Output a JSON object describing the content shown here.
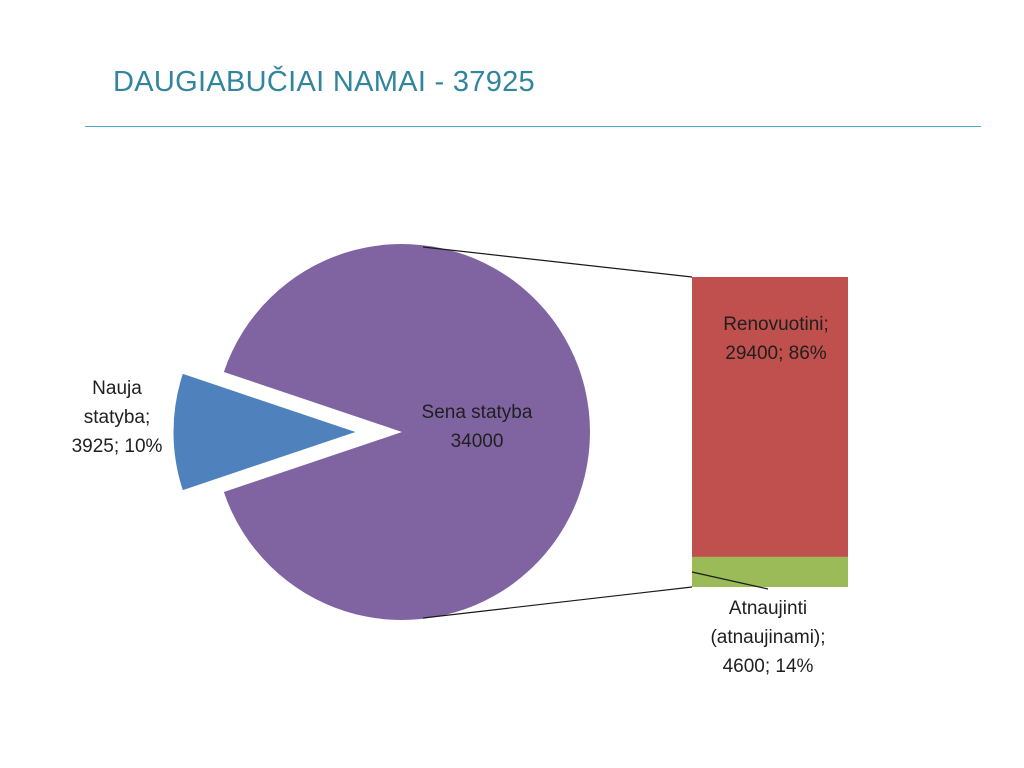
{
  "title": "DAUGIABUČIAI NAMAI - 37925",
  "colors": {
    "title": "#31859c",
    "rule": "#4bacc6",
    "old_construction": "#8064a2",
    "new_construction": "#4f81bd",
    "renovated": "#c0504d",
    "refurbished": "#9bbb59",
    "connector": "#1a1a1a"
  },
  "chart_data": {
    "type": "bar-of-pie",
    "pie": {
      "slices": [
        {
          "name": "Sena statyba",
          "value": 34000,
          "label_lines": [
            "Sena statyba",
            "34000"
          ],
          "color": "#8064a2"
        },
        {
          "name": "Nauja statyba",
          "value": 3925,
          "percent": 10,
          "exploded": true,
          "label_lines": [
            "Nauja",
            "statyba;",
            "3925; 10%"
          ],
          "color": "#4f81bd"
        }
      ]
    },
    "bar": {
      "breakdown_of": "Sena statyba",
      "segments": [
        {
          "name": "Renovuotini",
          "value": 29400,
          "percent": 86,
          "label_lines": [
            "Renovuotini;",
            "29400; 86%"
          ],
          "color": "#c0504d"
        },
        {
          "name": "Atnaujinti (atnaujinami)",
          "value": 4600,
          "percent": 14,
          "label_lines": [
            "Atnaujinti",
            "(atnaujinami);",
            "4600; 14%"
          ],
          "color": "#9bbb59"
        }
      ]
    },
    "legend": "none",
    "grid": false
  }
}
